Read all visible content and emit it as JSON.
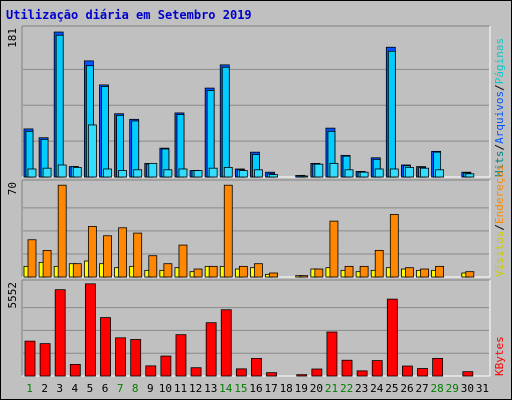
{
  "chart_data": {
    "type": "bar",
    "title": "Utilização diária em Setembro 2019",
    "days": [
      "1",
      "2",
      "3",
      "4",
      "5",
      "6",
      "7",
      "8",
      "9",
      "10",
      "11",
      "12",
      "13",
      "14",
      "15",
      "16",
      "17",
      "18",
      "19",
      "20",
      "21",
      "22",
      "23",
      "24",
      "25",
      "26",
      "27",
      "28",
      "29",
      "30",
      "31"
    ],
    "weekend_days": [
      "1",
      "7",
      "8",
      "14",
      "15",
      "21",
      "22",
      "28",
      "29"
    ],
    "colors": {
      "weekday_label": "#000000",
      "weekend_label": "#008000",
      "hits": "#0055ff",
      "files": "#00ccff",
      "pages": "#33ddff",
      "visits": "#ffff00",
      "hosts": "#ff8800",
      "kbytes": "#ff0000"
    },
    "panels": [
      {
        "name": "hits-files-pages",
        "ymax_label": "181",
        "ymax": 181,
        "legend": [
          "Hits",
          "/",
          "Arquivos",
          "/",
          "Páginas"
        ],
        "legend_colors": [
          "#008080",
          "#000000",
          "#0055ff",
          "#000000",
          "#00cccc"
        ],
        "series": [
          {
            "key": "hits",
            "values": [
              60,
              49,
              181,
              13,
              145,
              115,
              79,
              72,
              17,
              36,
              80,
              8,
              111,
              140,
              10,
              31,
              6,
              0,
              2,
              17,
              61,
              27,
              7,
              24,
              162,
              15,
              13,
              32,
              0,
              6,
              0
            ]
          },
          {
            "key": "files",
            "values": [
              57,
              47,
              177,
              13,
              139,
              113,
              77,
              70,
              16,
              35,
              78,
              8,
              108,
              137,
              9,
              28,
              4,
              0,
              2,
              16,
              57,
              26,
              6,
              22,
              157,
              14,
              12,
              31,
              0,
              5,
              0
            ]
          },
          {
            "key": "pages",
            "values": [
              10,
              11,
              15,
              12,
              65,
              10,
              8,
              9,
              17,
              9,
              10,
              8,
              11,
              12,
              8,
              9,
              3,
              0,
              1,
              16,
              17,
              9,
              6,
              10,
              10,
              12,
              11,
              9,
              0,
              4,
              0
            ]
          }
        ]
      },
      {
        "name": "visits-hosts",
        "ymax_label": "70",
        "ymax": 70,
        "legend": [
          "Visitas",
          "/",
          "Endereços"
        ],
        "legend_colors": [
          "#cccc00",
          "#000000",
          "#ff8800"
        ],
        "series": [
          {
            "key": "visits",
            "values": [
              8,
              11,
              8,
              10,
              12,
              10,
              7,
              8,
              5,
              5,
              7,
              4,
              8,
              8,
              6,
              7,
              2,
              0,
              1,
              6,
              7,
              5,
              4,
              5,
              7,
              6,
              5,
              5,
              0,
              3,
              0
            ]
          },
          {
            "key": "hosts",
            "values": [
              28,
              20,
              69,
              10,
              38,
              31,
              37,
              33,
              16,
              10,
              24,
              6,
              8,
              69,
              8,
              10,
              3,
              0,
              1,
              6,
              42,
              8,
              8,
              20,
              47,
              7,
              6,
              8,
              0,
              4,
              0
            ]
          }
        ]
      },
      {
        "name": "kbytes",
        "ymax_label": "5552",
        "ymax": 5552,
        "legend": [
          "KBytes"
        ],
        "legend_colors": [
          "#ff0000"
        ],
        "series": [
          {
            "key": "kbytes",
            "values": [
              2100,
              1950,
              5200,
              700,
              5552,
              3520,
              2300,
              2200,
              610,
              1200,
              2490,
              500,
              3210,
              3990,
              430,
              1060,
              200,
              0,
              80,
              420,
              2650,
              950,
              310,
              930,
              4630,
              600,
              450,
              1060,
              0,
              260,
              0
            ]
          }
        ]
      }
    ]
  }
}
